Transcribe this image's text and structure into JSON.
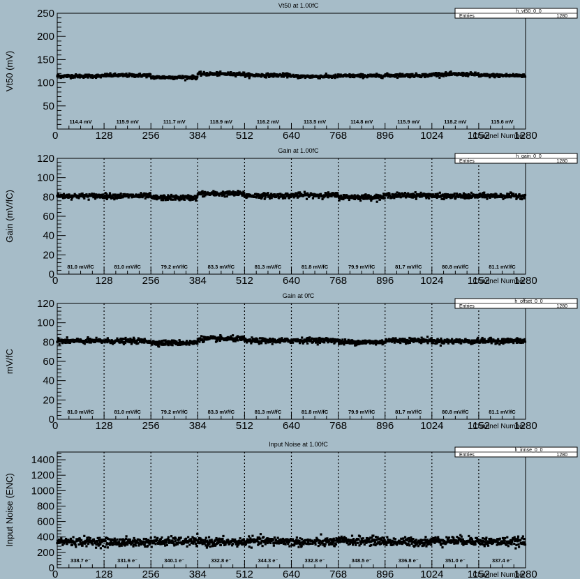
{
  "chart_data": [
    {
      "type": "scatter",
      "title": "Vt50 at 1.00fC",
      "ylabel": "Vt50 (mV)",
      "xlabel": "Channel Number",
      "xlim": [
        0,
        1280
      ],
      "ylim": [
        0,
        250
      ],
      "x_ticks": [
        0,
        128,
        256,
        384,
        512,
        640,
        768,
        896,
        1024,
        1152,
        1280
      ],
      "y_ticks": [
        50,
        100,
        150,
        200,
        250
      ],
      "stats": {
        "name": "h_vt50_0_0",
        "entries_label": "Entries",
        "entries": "1280"
      },
      "dividers": false,
      "segment_means": [
        114.4,
        115.9,
        111.7,
        118.9,
        116.2,
        113.5,
        114.8,
        115.9,
        118.2,
        115.6
      ],
      "segment_labels": [
        "114.4 mV",
        "115.9 mV",
        "111.7 mV",
        "118.9 mV",
        "116.2 mV",
        "113.5 mV",
        "114.8 mV",
        "115.9 mV",
        "118.2 mV",
        "115.6 mV"
      ],
      "scatter": 1.8
    },
    {
      "type": "scatter",
      "title": "Gain at 1.00fC",
      "ylabel": "Gain (mV/fC)",
      "xlabel": "Channel Number",
      "xlim": [
        0,
        1280
      ],
      "ylim": [
        0,
        120
      ],
      "x_ticks": [
        0,
        128,
        256,
        384,
        512,
        640,
        768,
        896,
        1024,
        1152,
        1280
      ],
      "y_ticks": [
        0,
        20,
        40,
        60,
        80,
        100,
        120
      ],
      "stats": {
        "name": "h_gain_0_0",
        "entries_label": "Entries",
        "entries": "1280"
      },
      "dividers": true,
      "segment_means": [
        81.0,
        81.0,
        79.2,
        83.3,
        81.3,
        81.8,
        79.9,
        81.7,
        80.8,
        81.1
      ],
      "segment_labels": [
        "81.0 mV/fC",
        "81.0 mV/fC",
        "79.2 mV/fC",
        "83.3 mV/fC",
        "81.3 mV/fC",
        "81.8 mV/fC",
        "79.9 mV/fC",
        "81.7 mV/fC",
        "80.8 mV/fC",
        "81.1 mV/fC"
      ],
      "scatter": 1.3
    },
    {
      "type": "scatter",
      "title": "Gain at 0fC",
      "ylabel": "mV/fC",
      "xlabel": "Channel Number",
      "xlim": [
        0,
        1280
      ],
      "ylim": [
        0,
        120
      ],
      "x_ticks": [
        0,
        128,
        256,
        384,
        512,
        640,
        768,
        896,
        1024,
        1152,
        1280
      ],
      "y_ticks": [
        0,
        20,
        40,
        60,
        80,
        100,
        120
      ],
      "stats": {
        "name": "h_offset_0_0",
        "entries_label": "Entries",
        "entries": "1280"
      },
      "dividers": true,
      "segment_means": [
        81.0,
        81.0,
        79.2,
        83.3,
        81.3,
        81.8,
        79.9,
        81.7,
        80.8,
        81.1
      ],
      "segment_labels": [
        "81.0 mV/fC",
        "81.0 mV/fC",
        "79.2 mV/fC",
        "83.3 mV/fC",
        "81.3 mV/fC",
        "81.8 mV/fC",
        "79.9 mV/fC",
        "81.7 mV/fC",
        "80.8 mV/fC",
        "81.1 mV/fC"
      ],
      "scatter": 1.3
    },
    {
      "type": "scatter",
      "title": "Input Noise at 1.00fC",
      "ylabel": "Input Noise (ENC)",
      "xlabel": "Channel Number",
      "xlim": [
        0,
        1280
      ],
      "ylim": [
        0,
        1500
      ],
      "x_ticks": [
        0,
        128,
        256,
        384,
        512,
        640,
        768,
        896,
        1024,
        1152,
        1280
      ],
      "y_ticks": [
        0,
        200,
        400,
        600,
        800,
        1000,
        1200,
        1400
      ],
      "stats": {
        "name": "h_innse_0_0",
        "entries_label": "Entries",
        "entries": "1280"
      },
      "dividers": true,
      "segment_means": [
        338.7,
        331.6,
        340.1,
        332.8,
        344.3,
        332.8,
        348.5,
        336.8,
        351.0,
        337.4
      ],
      "segment_labels": [
        "338.7 e⁻",
        "331.6 e⁻",
        "340.1 e⁻",
        "332.8 e⁻",
        "344.3 e⁻",
        "332.8 e⁻",
        "348.5 e⁻",
        "336.8 e⁻",
        "351.0 e⁻",
        "337.4 e⁻"
      ],
      "scatter": 28
    }
  ]
}
